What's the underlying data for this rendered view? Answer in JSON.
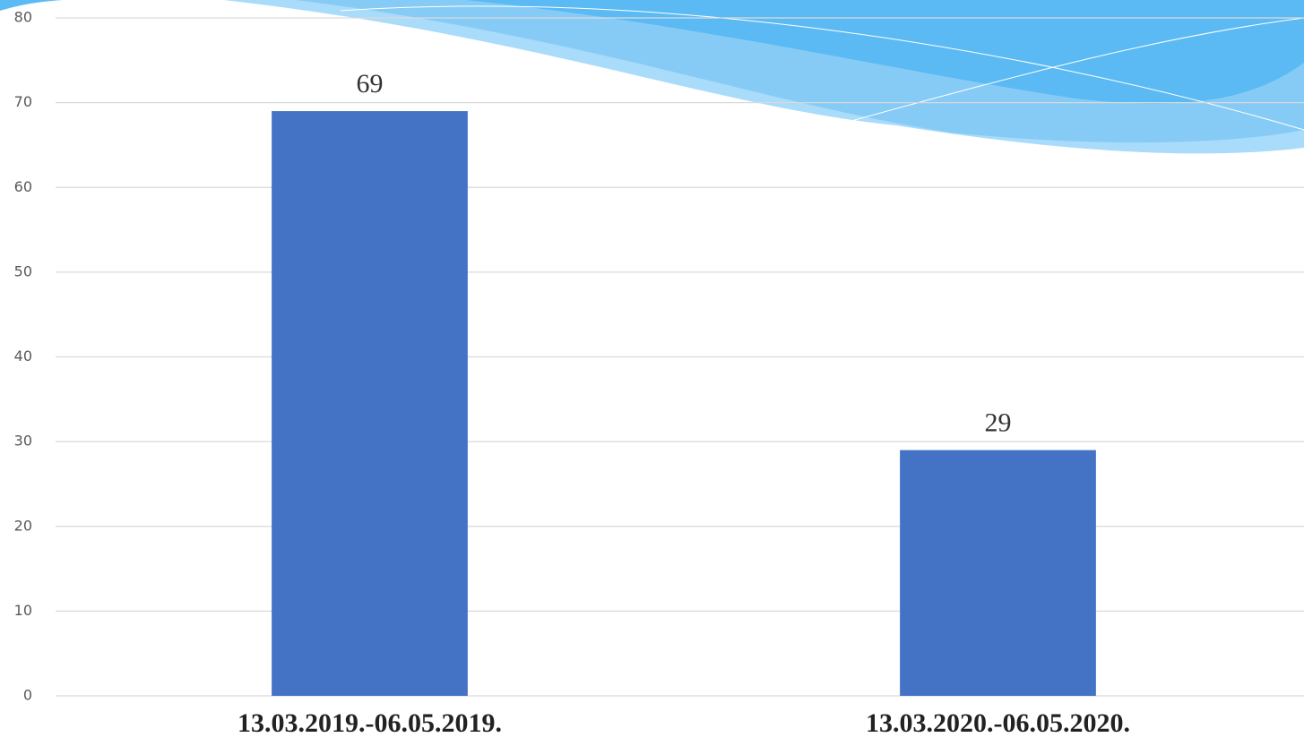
{
  "chart_data": {
    "type": "bar",
    "categories": [
      "13.03.2019.-06.05.2019.",
      "13.03.2020.-06.05.2020."
    ],
    "values": [
      69,
      29
    ],
    "color": "#4472c4",
    "ylim": [
      0,
      80
    ],
    "yticks": [
      0,
      10,
      20,
      30,
      40,
      50,
      60,
      70,
      80
    ],
    "grid": true
  }
}
